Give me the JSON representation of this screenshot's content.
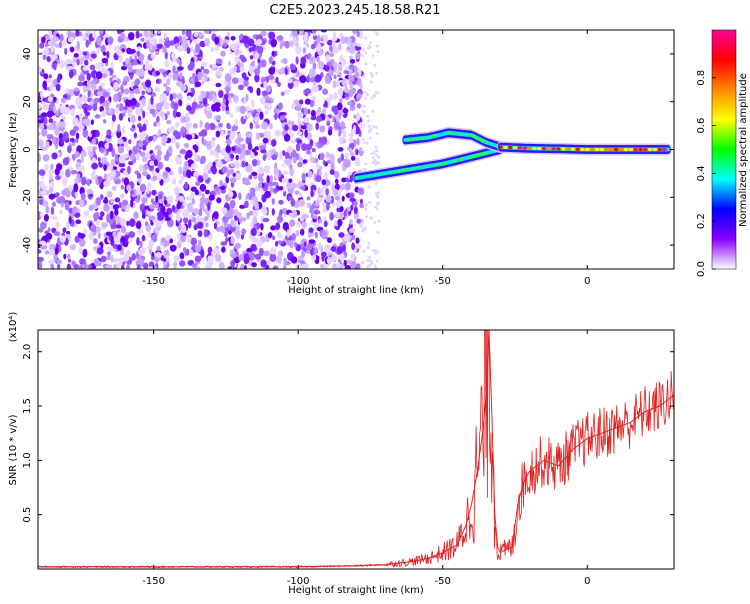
{
  "page_title": "C2E5.2023.245.18.58.R21",
  "chart_data": [
    {
      "type": "heatmap",
      "title": "C2E5.2023.245.18.58.R21",
      "xlabel": "Height of straight line (km)",
      "ylabel": "Frequency (Hz)",
      "xlim": [
        -190,
        30
      ],
      "ylim": [
        -50,
        50
      ],
      "xticks": [
        -150,
        -100,
        -50,
        0
      ],
      "xtick_labels": [
        "-150",
        "-100",
        "-50",
        "0"
      ],
      "yticks": [
        -40,
        -20,
        0,
        20,
        40
      ],
      "ytick_labels": [
        "-40",
        "-20",
        "0",
        "20",
        "40"
      ],
      "grid": false,
      "noise_region": {
        "x_range": [
          -190,
          -78
        ],
        "y_range": [
          -50,
          50
        ]
      },
      "signal_tracks": [
        {
          "name": "",
          "x": [
            -80,
            -70,
            -60,
            -50,
            -40,
            -30
          ],
          "y": [
            -12,
            -10,
            -8,
            -6,
            -3,
            0
          ]
        },
        {
          "name": "",
          "x": [
            -63,
            -55,
            -48,
            -40,
            -35,
            -30
          ],
          "y": [
            4,
            5,
            7,
            6,
            3,
            1
          ]
        },
        {
          "name": "",
          "x": [
            -30,
            -20,
            -10,
            0,
            10,
            20,
            28
          ],
          "y": [
            1,
            0.5,
            0.3,
            0,
            0,
            0,
            0
          ]
        }
      ],
      "colorbar": {
        "label": "Normalized spectral amplitude",
        "range": [
          0,
          1
        ],
        "ticks": [
          0,
          0.2,
          0.4,
          0.6,
          0.8
        ],
        "tick_labels": [
          "0.0",
          "0.2",
          "0.4",
          "0.6",
          "0.8"
        ],
        "colors": [
          "#ffffff",
          "#8800ff",
          "#0000ff",
          "#00ffff",
          "#00ff00",
          "#ffff00",
          "#ff8800",
          "#ff0000",
          "#ff0099"
        ]
      }
    },
    {
      "type": "line",
      "xlabel": "Height of straight line (km)",
      "ylabel": "SNR (10 * v/v)",
      "scale_note": "(x10⁴)",
      "xlim": [
        -190,
        30
      ],
      "ylim": [
        0,
        2.2
      ],
      "xticks": [
        -150,
        -100,
        -50,
        0
      ],
      "xtick_labels": [
        "-150",
        "-100",
        "-50",
        "0"
      ],
      "yticks": [
        0.5,
        1.0,
        1.5,
        2.0
      ],
      "ytick_labels": [
        "0.5",
        "1.0",
        "1.5",
        "2.0"
      ],
      "line_color": "#e02020",
      "grid": false,
      "series": [
        {
          "name": "",
          "x": [
            -190,
            -150,
            -100,
            -80,
            -70,
            -60,
            -55,
            -50,
            -45,
            -42,
            -40,
            -38,
            -36,
            -35,
            -34,
            -33,
            -32,
            -31,
            -30,
            -28,
            -26,
            -24,
            -22,
            -20,
            -15,
            -10,
            -5,
            0,
            5,
            10,
            15,
            20,
            25,
            30
          ],
          "y": [
            0.02,
            0.02,
            0.02,
            0.03,
            0.04,
            0.07,
            0.1,
            0.15,
            0.22,
            0.4,
            0.6,
            0.9,
            1.3,
            1.6,
            2.2,
            1.4,
            0.5,
            0.2,
            0.15,
            0.18,
            0.2,
            0.6,
            0.8,
            0.9,
            1.0,
            0.95,
            1.1,
            1.2,
            1.25,
            1.3,
            1.35,
            1.45,
            1.5,
            1.6
          ]
        }
      ]
    }
  ]
}
